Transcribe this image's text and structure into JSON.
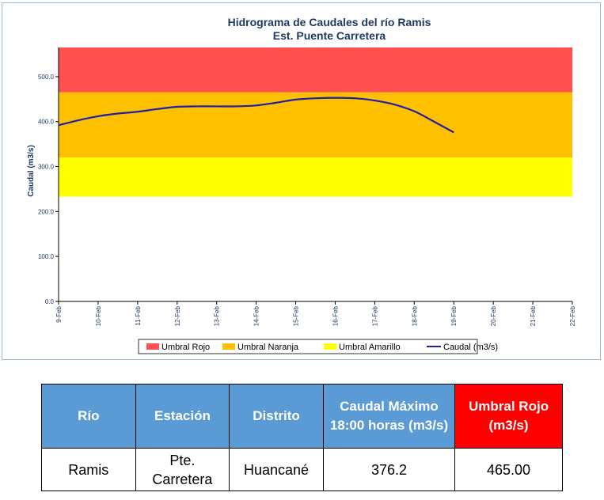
{
  "chart_data": {
    "type": "line",
    "title": "Hidrograma de Caudales del río Ramis",
    "subtitle": "Est. Puente Carretera",
    "ylabel": "Caudal (m3/s)",
    "xlabel": "",
    "ylim": [
      0,
      565
    ],
    "y_ticks": [
      "0.0",
      "100.0",
      "200.0",
      "300.0",
      "400.0",
      "500.0"
    ],
    "y_tick_values": [
      0,
      100,
      200,
      300,
      400,
      500
    ],
    "x_tick_labels": [
      "9-Feb",
      "10-Feb",
      "11-Feb",
      "12-Feb",
      "13-Feb",
      "14-Feb",
      "15-Feb",
      "16-Feb",
      "17-Feb",
      "18-Feb",
      "19-Feb",
      "20-Feb",
      "21-Feb",
      "22-Feb"
    ],
    "bands": [
      {
        "name": "Umbral Rojo",
        "from": 465.0,
        "to": 565,
        "color": "#ff5050"
      },
      {
        "name": "Umbral Naranja",
        "from": 320.0,
        "to": 465.0,
        "color": "#ffc000"
      },
      {
        "name": "Umbral Amarillo",
        "from": 233.0,
        "to": 320.0,
        "color": "#ffff00"
      }
    ],
    "series": [
      {
        "name": "Caudal (m3/s)",
        "color": "#1f1fa8",
        "x": [
          0,
          0.5,
          1,
          1.5,
          2,
          2.5,
          3,
          3.5,
          4,
          4.5,
          5,
          5.5,
          6,
          6.5,
          7,
          7.5,
          8,
          8.5,
          9,
          9.5,
          10
        ],
        "values": [
          392,
          403,
          412,
          418,
          422,
          428,
          433,
          434,
          434,
          434,
          436,
          442,
          449,
          452,
          453,
          452,
          447,
          438,
          423,
          400,
          376
        ]
      }
    ],
    "legend_position": "bottom",
    "grid": false
  },
  "table": {
    "headers": [
      "Río",
      "Estación",
      "Distrito",
      "Caudal Máximo 18:00 horas (m3/s)",
      "Umbral Rojo (m3/s)"
    ],
    "rows": [
      [
        "Ramis",
        "Pte. Carretera",
        "Huancané",
        "376.2",
        "465.00"
      ]
    ]
  }
}
